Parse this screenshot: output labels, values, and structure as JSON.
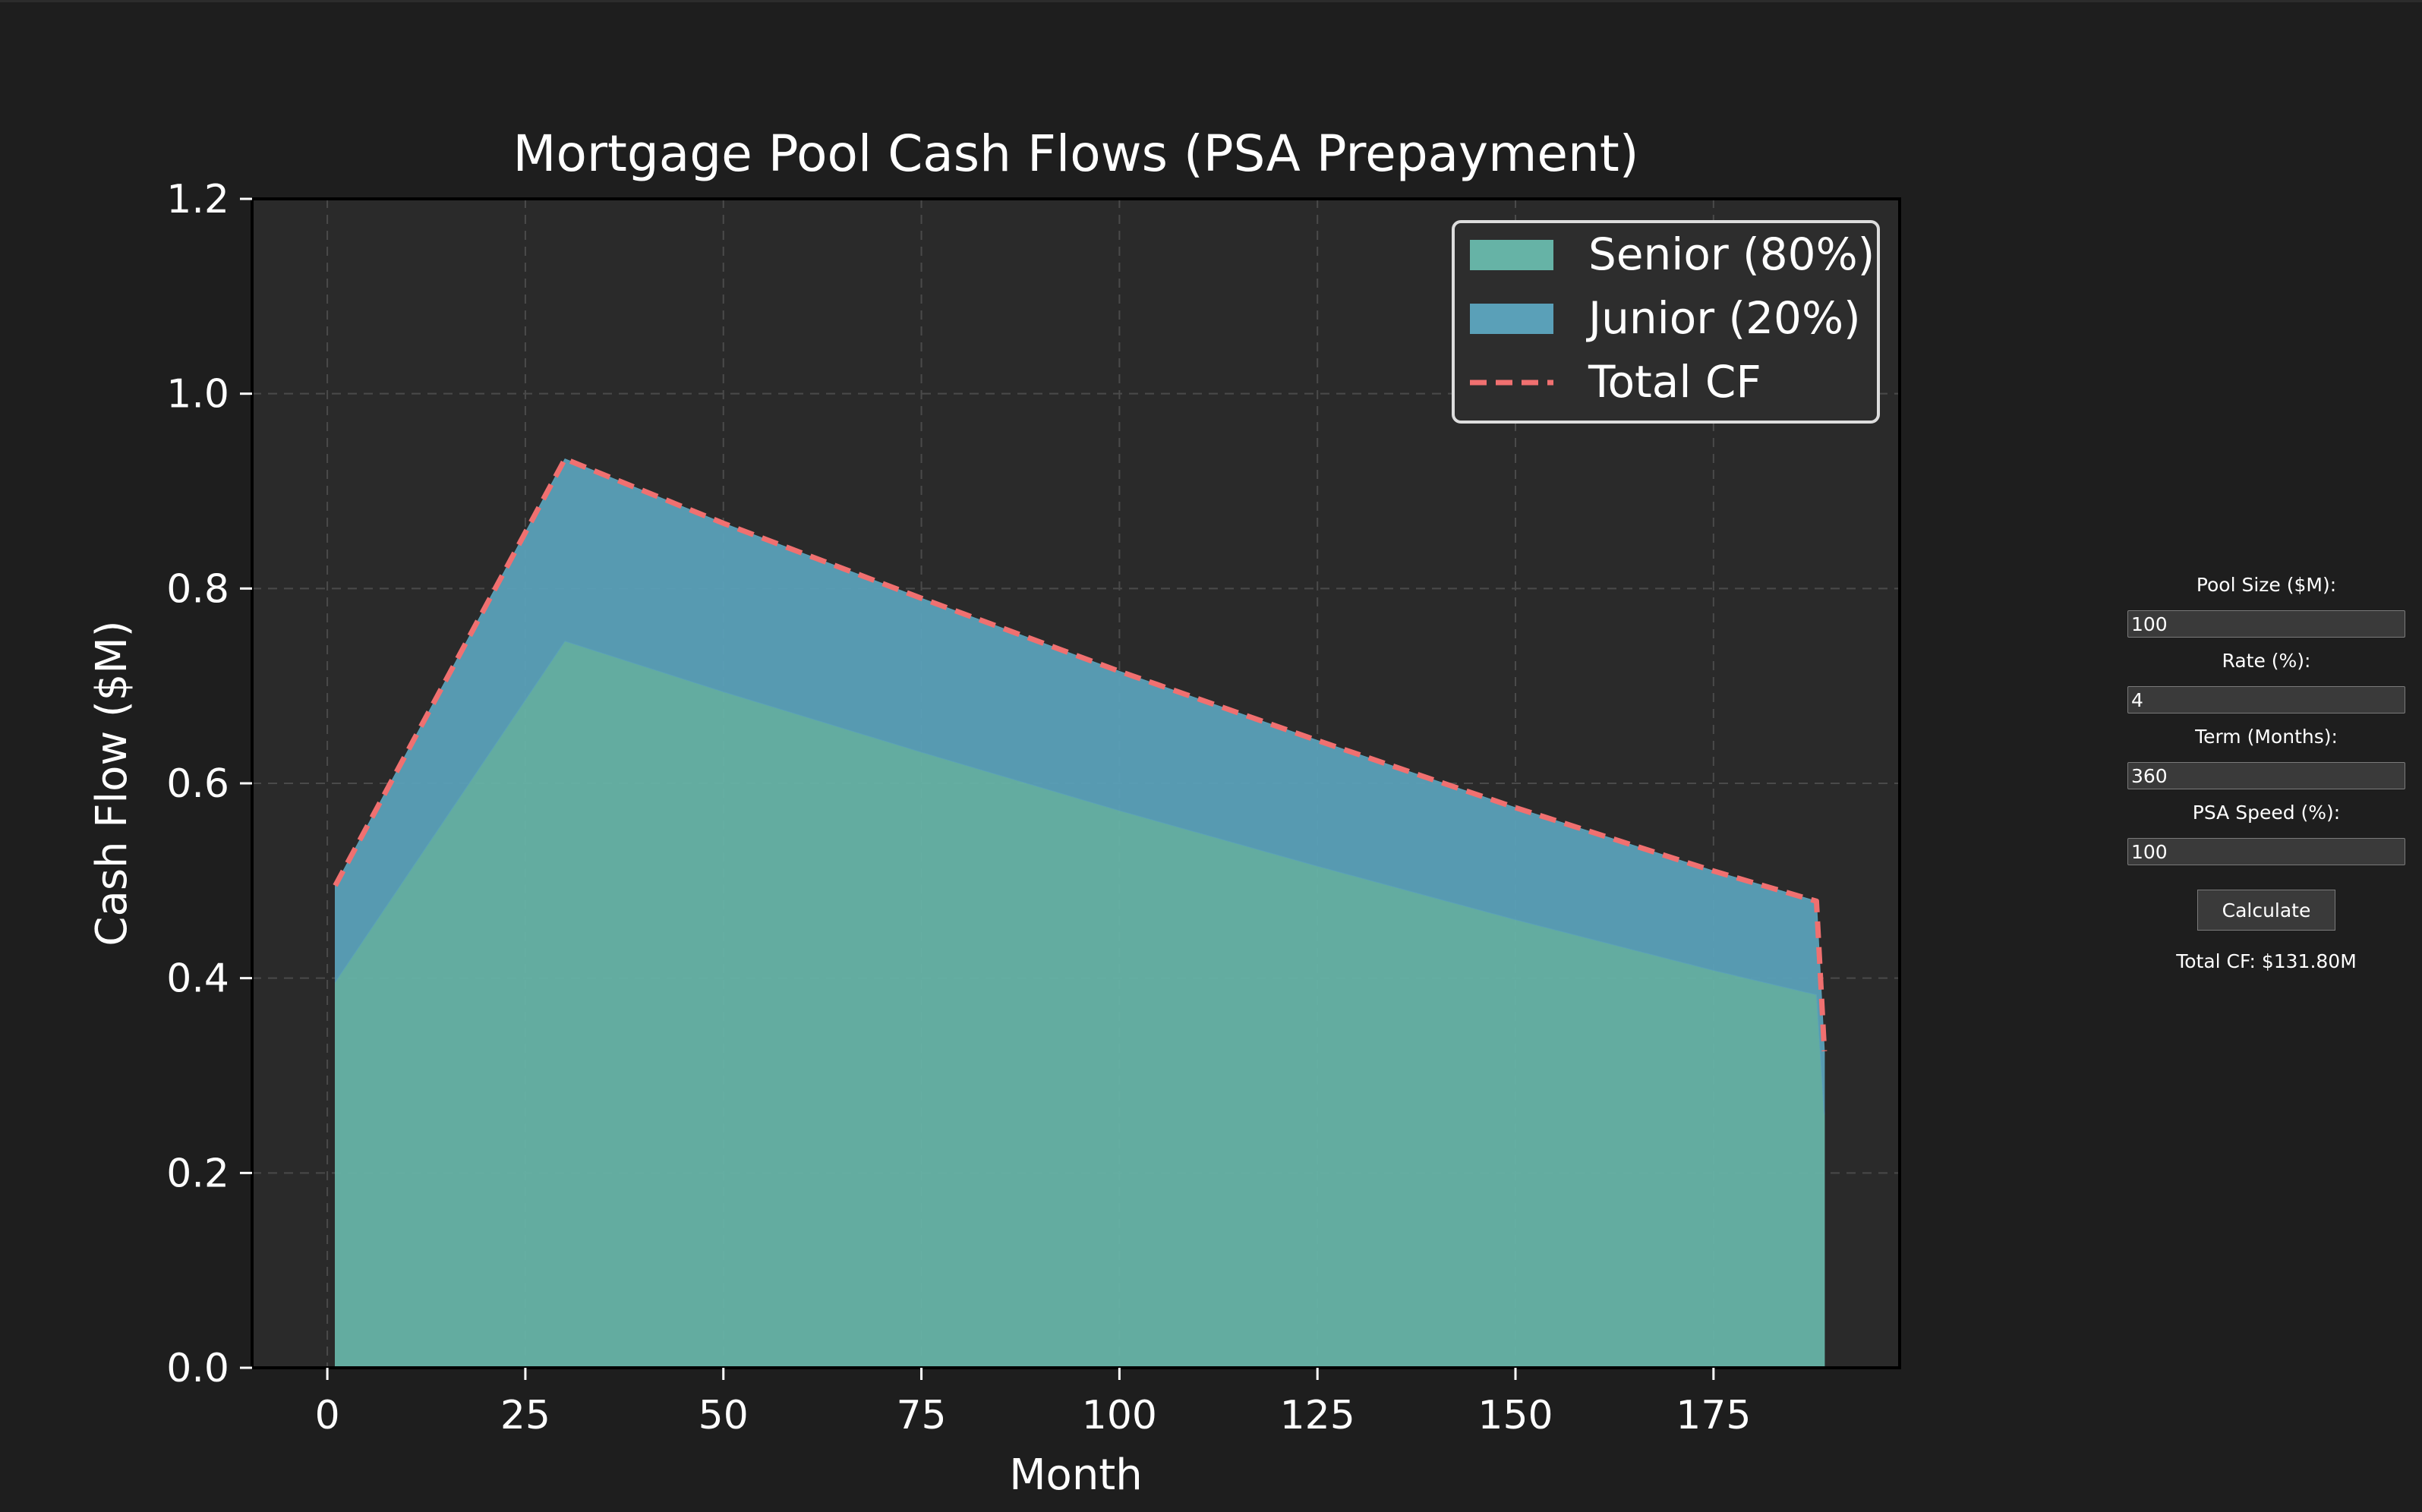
{
  "chart_data": {
    "type": "area",
    "title": "Mortgage Pool Cash Flows (PSA Prepayment)",
    "xlabel": "Month",
    "ylabel": "Cash Flow ($M)",
    "xlim": [
      -9.5,
      198.5
    ],
    "ylim": [
      0,
      1.2
    ],
    "xticks": [
      0,
      25,
      50,
      75,
      100,
      125,
      150,
      175
    ],
    "yticks": [
      0.0,
      0.2,
      0.4,
      0.6,
      0.8,
      1.0,
      1.2
    ],
    "ytick_labels": [
      "0.0",
      "0.2",
      "0.4",
      "0.6",
      "0.8",
      "1.0",
      "1.2"
    ],
    "grid": true,
    "stacked": true,
    "legend_position": "top-right",
    "x": [
      1,
      30,
      50,
      75,
      100,
      125,
      150,
      175,
      188,
      189
    ],
    "series": [
      {
        "name": "Senior (80%)",
        "kind": "area",
        "color": "#66b3a6",
        "values": [
          0.396,
          0.746,
          0.694,
          0.632,
          0.572,
          0.515,
          0.46,
          0.408,
          0.383,
          0.26
        ]
      },
      {
        "name": "Junior (20%)",
        "kind": "area",
        "color": "#5aa0b8",
        "values": [
          0.099,
          0.187,
          0.173,
          0.158,
          0.143,
          0.129,
          0.115,
          0.102,
          0.096,
          0.065
        ]
      },
      {
        "name": "Total CF",
        "kind": "line",
        "style": "dashed",
        "color": "#f07070",
        "values": [
          0.495,
          0.933,
          0.867,
          0.79,
          0.715,
          0.644,
          0.575,
          0.51,
          0.479,
          0.325
        ]
      }
    ]
  },
  "controls": {
    "pool_size_label": "Pool Size ($M):",
    "pool_size_value": "100",
    "rate_label": "Rate (%):",
    "rate_value": "4",
    "term_label": "Term (Months):",
    "term_value": "360",
    "psa_label": "PSA Speed (%):",
    "psa_value": "100",
    "calculate_label": "Calculate",
    "total_readout": "Total CF: $131.80M"
  },
  "colors": {
    "background": "#1e1e1e",
    "plot_background": "#2a2a2a",
    "grid": "#4a4a4a"
  }
}
